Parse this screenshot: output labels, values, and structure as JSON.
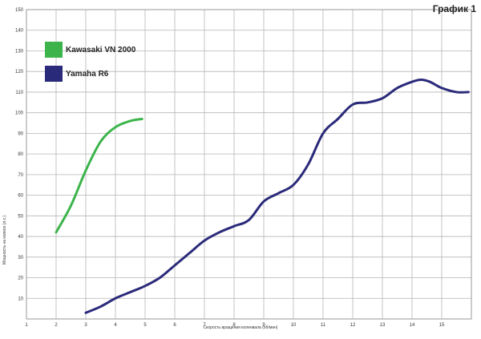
{
  "chart_data": {
    "type": "line",
    "title": "График 1",
    "xlabel": "Скорость вращения коленвала (об/мин)",
    "ylabel": "Мощность на колесе (л.с.)",
    "xlim": [
      1,
      16
    ],
    "ylim": [
      0,
      150
    ],
    "x_ticks": [
      "1",
      "2",
      "3",
      "4",
      "5",
      "6",
      "7",
      "8",
      "9",
      "10",
      "11",
      "12",
      "13",
      "14",
      "15",
      ""
    ],
    "y_ticks": [
      "10",
      "20",
      "30",
      "40",
      "50",
      "60",
      "70",
      "80",
      "90",
      "100",
      "110",
      "120",
      "130",
      "140",
      "150"
    ],
    "grid": true,
    "legend_position": "top-left",
    "series": [
      {
        "name": "Kawasaki VN 2000",
        "color": "#3cb44b",
        "x": [
          2.0,
          2.5,
          3.0,
          3.5,
          4.0,
          4.5,
          4.9
        ],
        "y": [
          42,
          55,
          72,
          86,
          93,
          96,
          97
        ]
      },
      {
        "name": "Yamaha R6",
        "color": "#2a2a7a",
        "x": [
          3.0,
          3.5,
          4.0,
          4.5,
          5.0,
          5.5,
          6.0,
          6.5,
          7.0,
          7.5,
          8.0,
          8.5,
          9.0,
          9.5,
          10.0,
          10.5,
          11.0,
          11.5,
          12.0,
          12.5,
          13.0,
          13.5,
          14.0,
          14.3,
          14.6,
          15.0,
          15.5,
          15.9
        ],
        "y": [
          3,
          6,
          10,
          13,
          16,
          20,
          26,
          32,
          38,
          42,
          45,
          48,
          57,
          61,
          65,
          75,
          90,
          97,
          104,
          105,
          107,
          112,
          115,
          116,
          115,
          112,
          110,
          110
        ]
      }
    ]
  }
}
